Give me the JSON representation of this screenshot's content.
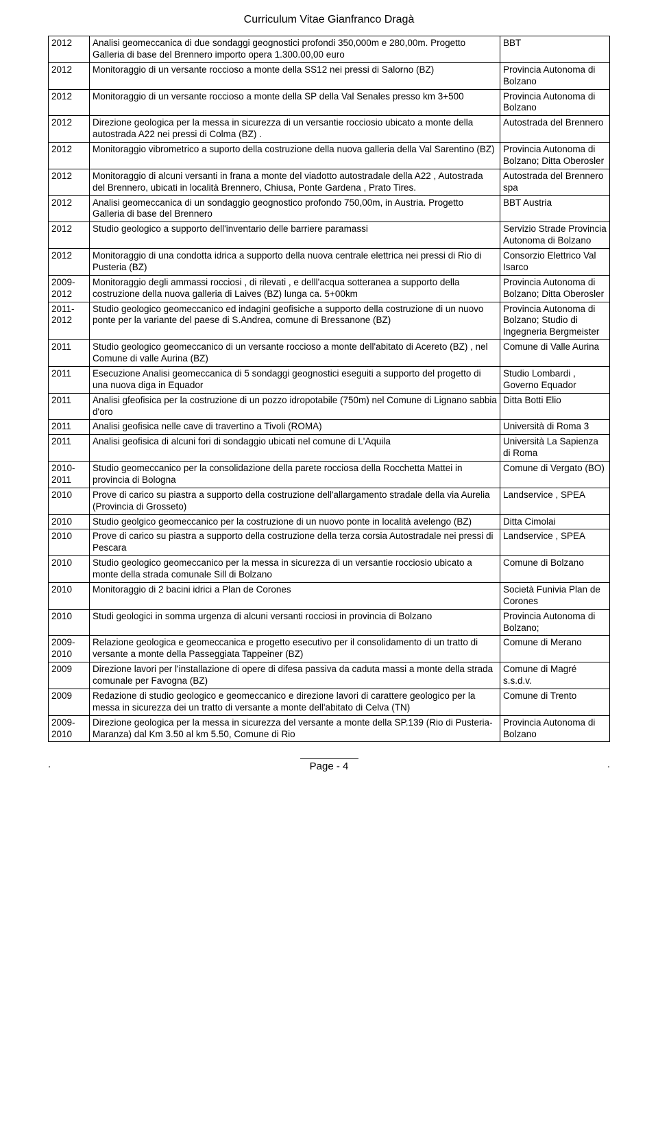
{
  "header": {
    "title": "Curriculum Vitae  Gianfranco Dragà"
  },
  "table": {
    "col_widths": {
      "year": 60,
      "client": 160
    },
    "rows": [
      {
        "year": "2012",
        "desc": "Analisi geomeccanica  di due sondaggi geognostici profondi 350,000m e 280,00m. Progetto Galleria di base del Brennero  importo opera 1.300.00,00 euro",
        "client": "BBT"
      },
      {
        "year": "2012",
        "desc": "Monitoraggio di un versante roccioso a monte della SS12 nei pressi di Salorno (BZ)",
        "client": "Provincia Autonoma di Bolzano"
      },
      {
        "year": "2012",
        "desc": "Monitoraggio di un versante roccioso a monte della SP della Val Senales presso km 3+500",
        "client": "Provincia Autonoma di Bolzano"
      },
      {
        "year": "2012",
        "desc": "Direzione geologica per la messa in sicurezza di un versantie rocciosio ubicato a monte della autostrada  A22 nei pressi di Colma (BZ) .",
        "client": "Autostrada del Brennero"
      },
      {
        "year": "2012",
        "desc": "Monitoraggio vibrometrico a suporto della costruzione della nuova galleria della Val Sarentino (BZ)",
        "client": "Provincia Autonoma di Bolzano; Ditta Oberosler"
      },
      {
        "year": "2012",
        "desc": "Monitoraggio di alcuni versanti in frana  a monte del viadotto autostradale della A22 , Autostrada del Brennero, ubicati in località Brennero, Chiusa, Ponte Gardena , Prato Tires.",
        "client": "Autostrada del Brennero spa"
      },
      {
        "year": "2012",
        "desc": "Analisi geomeccanica  di un sondaggio geognostico profondo 750,00m, in Austria.  Progetto Galleria di base del Brennero",
        "client": "BBT Austria"
      },
      {
        "year": "2012",
        "desc": "Studio geologico a supporto dell'inventario delle barriere paramassi",
        "client": "Servizio Strade Provincia Autonoma di Bolzano"
      },
      {
        "year": "2012",
        "desc": "Monitoraggio di una condotta idrica a  supporto della nuova centrale elettrica nei pressi di Rio di Pusteria (BZ)",
        "client": "Consorzio Elettrico Val Isarco"
      },
      {
        "year": "2009-2012",
        "desc": "Monitoraggio degli ammassi rocciosi , di rilevati , e delll'acqua sotteranea a supporto della costruzione della nuova galleria di Laives (BZ) lunga ca. 5+00km",
        "client": "Provincia Autonoma di Bolzano; Ditta Oberosler"
      },
      {
        "year": "2011-2012",
        "desc": "Studio geologico geomeccanico ed indagini geofisiche  a supporto della costruzione di un nuovo ponte per la variante del paese di S.Andrea, comune di Bressanone (BZ)",
        "client": "Provincia Autonoma di Bolzano; Studio di Ingegneria Bergmeister"
      },
      {
        "year": "2011",
        "desc": "Studio geologico geomeccanico di un versante roccioso a monte dell'abitato di Acereto (BZ) , nel Comune di valle Aurina  (BZ)",
        "client": "Comune di Valle Aurina"
      },
      {
        "year": "2011",
        "desc": "Esecuzione Analisi geomeccanica  di 5 sondaggi geognostici eseguiti a supporto del progetto di una nuova diga in Equador",
        "client": "Studio Lombardi , Governo Equador"
      },
      {
        "year": "2011",
        "desc": "Analisi gfeofisica per la costruzione di un pozzo idropotabile (750m) nel Comune di Lignano sabbia d'oro",
        "client": "Ditta Botti Elio"
      },
      {
        "year": "2011",
        "desc": "Analisi geofisica nelle cave di travertino a Tivoli (ROMA)",
        "client": "Università di Roma 3"
      },
      {
        "year": "2011",
        "desc": "Analisi geofisica di alcuni fori di sondaggio ubicati nel comune di L'Aquila",
        "client": "Università La Sapienza di Roma"
      },
      {
        "year": "2010-2011",
        "desc": "Studio geomeccanico per la consolidazione della parete rocciosa della Rocchetta Mattei in provincia di Bologna",
        "client": "Comune di Vergato (BO)"
      },
      {
        "year": "2010",
        "desc": "Prove di carico su piastra a supporto della costruzione dell'allargamento stradale della via Aurelia (Provincia di Grosseto)",
        "client": "Landservice , SPEA"
      },
      {
        "year": "2010",
        "desc": "Studio geolgico geomeccanico per la costruzione di un nuovo ponte in località avelengo (BZ)",
        "client": "Ditta Cimolai"
      },
      {
        "year": "2010",
        "desc": "Prove di carico su piastra a supporto della costruzione della terza corsia Autostradale nei pressi di Pescara",
        "client": "Landservice , SPEA"
      },
      {
        "year": "2010",
        "desc": "Studio geologico geomeccanico per la messa in sicurezza di un versantie rocciosio ubicato a monte della strada comunale Sill di Bolzano",
        "client": "Comune di Bolzano"
      },
      {
        "year": "2010",
        "desc": "Monitoraggio di 2 bacini idrici a Plan de Corones",
        "client": "Società Funivia Plan de Corones"
      },
      {
        "year": "2010",
        "desc": "Studi geologici in somma urgenza  di alcuni versanti rocciosi in provincia di Bolzano",
        "client": "Provincia Autonoma di Bolzano;"
      },
      {
        "year": "2009-2010",
        "desc": "Relazione geologica e geomeccanica e progetto esecutivo per il consolidamento di un tratto di versante a monte della Passeggiata Tappeiner (BZ)",
        "client": "Comune di Merano"
      },
      {
        "year": "2009",
        "desc": "Direzione lavori per l'installazione di opere di difesa passiva da caduta massi a monte della strada comunale per Favogna (BZ)",
        "client": "Comune di Magré s.s.d.v."
      },
      {
        "year": "2009",
        "desc": "Redazione di studio geologico e geomeccanico e direzione lavori di carattere geologico per la messa in sicurezza dei un tratto di versante a monte dell'abitato di Celva (TN)",
        "client": "Comune di Trento"
      },
      {
        "year": "2009-2010",
        "desc": "Direzione geologica per la messa in sicurezza del versante a monte della SP.139 (Rio di Pusteria-Maranza) dal Km 3.50 al km 5.50, Comune di Rio",
        "client": "Provincia Autonoma di Bolzano"
      }
    ]
  },
  "footer": {
    "page_label": "Page - 4",
    "dot": "."
  }
}
